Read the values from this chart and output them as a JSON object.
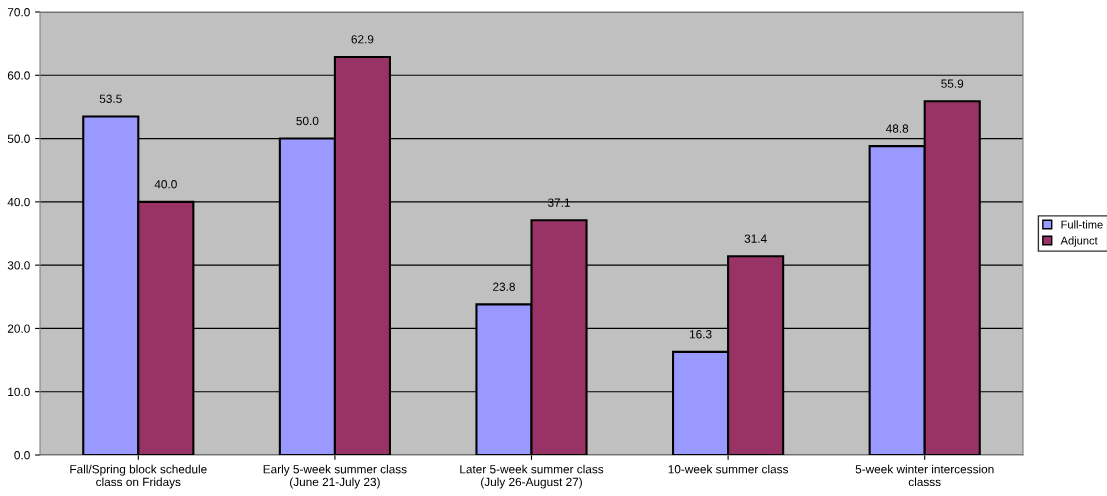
{
  "chart_data": {
    "type": "bar",
    "categories": [
      "Fall/Spring block schedule\nclass on Fridays",
      "Early 5-week summer class\n(June 21-July 23)",
      "Later 5-week summer class\n(July 26-August 27)",
      "10-week summer class",
      "5-week winter intercession\nclasss"
    ],
    "series": [
      {
        "name": "Full-time",
        "color": "#9999ff",
        "values": [
          53.5,
          50.0,
          23.8,
          16.3,
          48.8
        ],
        "value_labels": [
          "53.5",
          "50.0",
          "23.8",
          "16.3",
          "48.8"
        ]
      },
      {
        "name": "Adjunct",
        "color": "#993366",
        "values": [
          40.0,
          62.9,
          37.1,
          31.4,
          55.9
        ],
        "value_labels": [
          "40.0",
          "62.9",
          "37.1",
          "31.4",
          "55.9"
        ]
      }
    ],
    "ylim": [
      0,
      70
    ],
    "yticks": [
      {
        "value": 0,
        "label": "0.0"
      },
      {
        "value": 10,
        "label": "10.0"
      },
      {
        "value": 20,
        "label": "20.0"
      },
      {
        "value": 30,
        "label": "30.0"
      },
      {
        "value": 40,
        "label": "40.0"
      },
      {
        "value": 50,
        "label": "50.0"
      },
      {
        "value": 60,
        "label": "60.0"
      },
      {
        "value": 70,
        "label": "70.0"
      }
    ],
    "grid": "y",
    "legend": "right"
  }
}
